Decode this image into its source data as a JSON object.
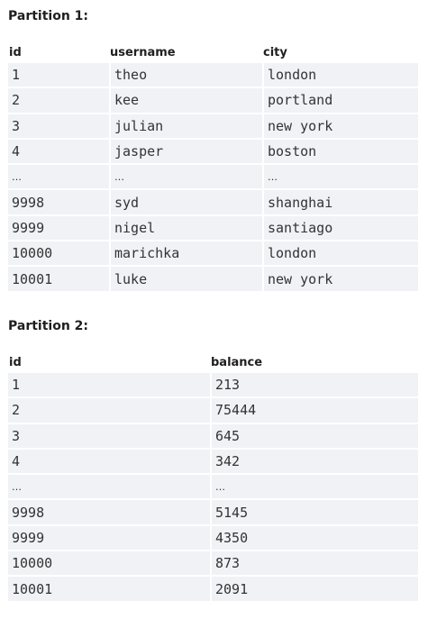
{
  "partition1": {
    "title": "Partition 1:",
    "columns": [
      "id",
      "username",
      "city"
    ],
    "rows": [
      [
        "1",
        "theo",
        "london"
      ],
      [
        "2",
        "kee",
        "portland"
      ],
      [
        "3",
        "julian",
        "new york"
      ],
      [
        "4",
        "jasper",
        "boston"
      ],
      [
        "…",
        "…",
        "…"
      ],
      [
        "9998",
        "syd",
        "shanghai"
      ],
      [
        "9999",
        "nigel",
        "santiago"
      ],
      [
        "10000",
        "marichka",
        "london"
      ],
      [
        "10001",
        "luke",
        "new york"
      ]
    ]
  },
  "partition2": {
    "title": "Partition 2:",
    "columns": [
      "id",
      "balance"
    ],
    "rows": [
      [
        "1",
        "213"
      ],
      [
        "2",
        "75444"
      ],
      [
        "3",
        "645"
      ],
      [
        "4",
        "342"
      ],
      [
        "…",
        "…"
      ],
      [
        "9998",
        "5145"
      ],
      [
        "9999",
        "4350"
      ],
      [
        "10000",
        "873"
      ],
      [
        "10001",
        "2091"
      ]
    ]
  }
}
